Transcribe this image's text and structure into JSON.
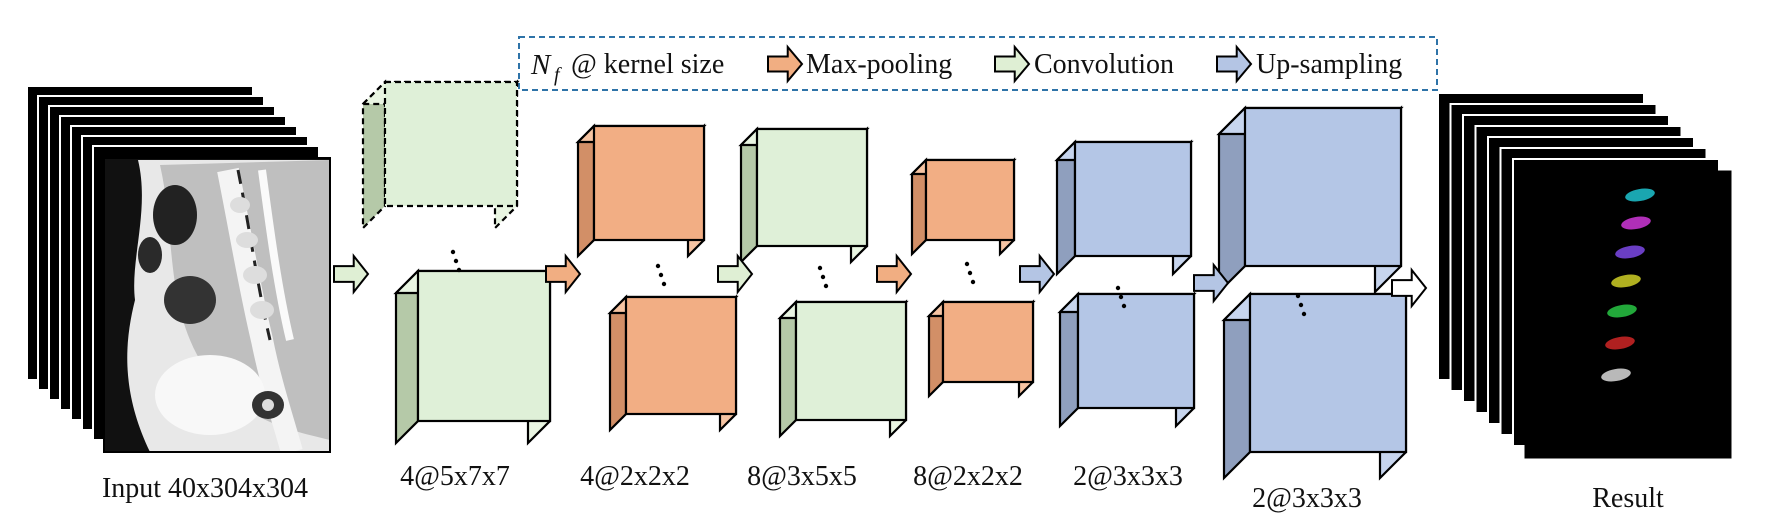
{
  "legend": {
    "nf_symbol": "N",
    "nf_sub": "f",
    "at_text": "@ kernel size",
    "items": [
      {
        "label": "Max-pooling",
        "color": "#f1ae82"
      },
      {
        "label": "Convolution",
        "color": "#dfefd4"
      },
      {
        "label": "Up-sampling",
        "color": "#b4c5e4"
      }
    ],
    "border_color": "#2e73a8"
  },
  "input": {
    "label": "Input 40x304x304"
  },
  "layers": [
    {
      "label": "4@5x7x7",
      "kind": "convolution"
    },
    {
      "label": "4@2x2x2",
      "kind": "max-pooling"
    },
    {
      "label": "8@3x5x5",
      "kind": "convolution"
    },
    {
      "label": "8@2x2x2",
      "kind": "max-pooling"
    },
    {
      "label": "2@3x3x3",
      "kind": "up-sampling"
    },
    {
      "label": "2@3x3x3",
      "kind": "up-sampling"
    }
  ],
  "output": {
    "label": "Result",
    "segment_colors": [
      "#1aa6b0",
      "#b02fb8",
      "#6a3ec4",
      "#b0b020",
      "#22a83a",
      "#b02020",
      "#b9b9b9"
    ]
  },
  "colors": {
    "convolution": {
      "front": "#dff0d8",
      "top": "#e9f5e2",
      "side": "#b5c9a8"
    },
    "max-pooling": {
      "front": "#f2ae84",
      "top": "#f6c4a3",
      "side": "#d28f67"
    },
    "up-sampling": {
      "front": "#b4c6e6",
      "top": "#c7d5ee",
      "side": "#8f9fbe"
    },
    "arrow_white": "#ffffff"
  }
}
